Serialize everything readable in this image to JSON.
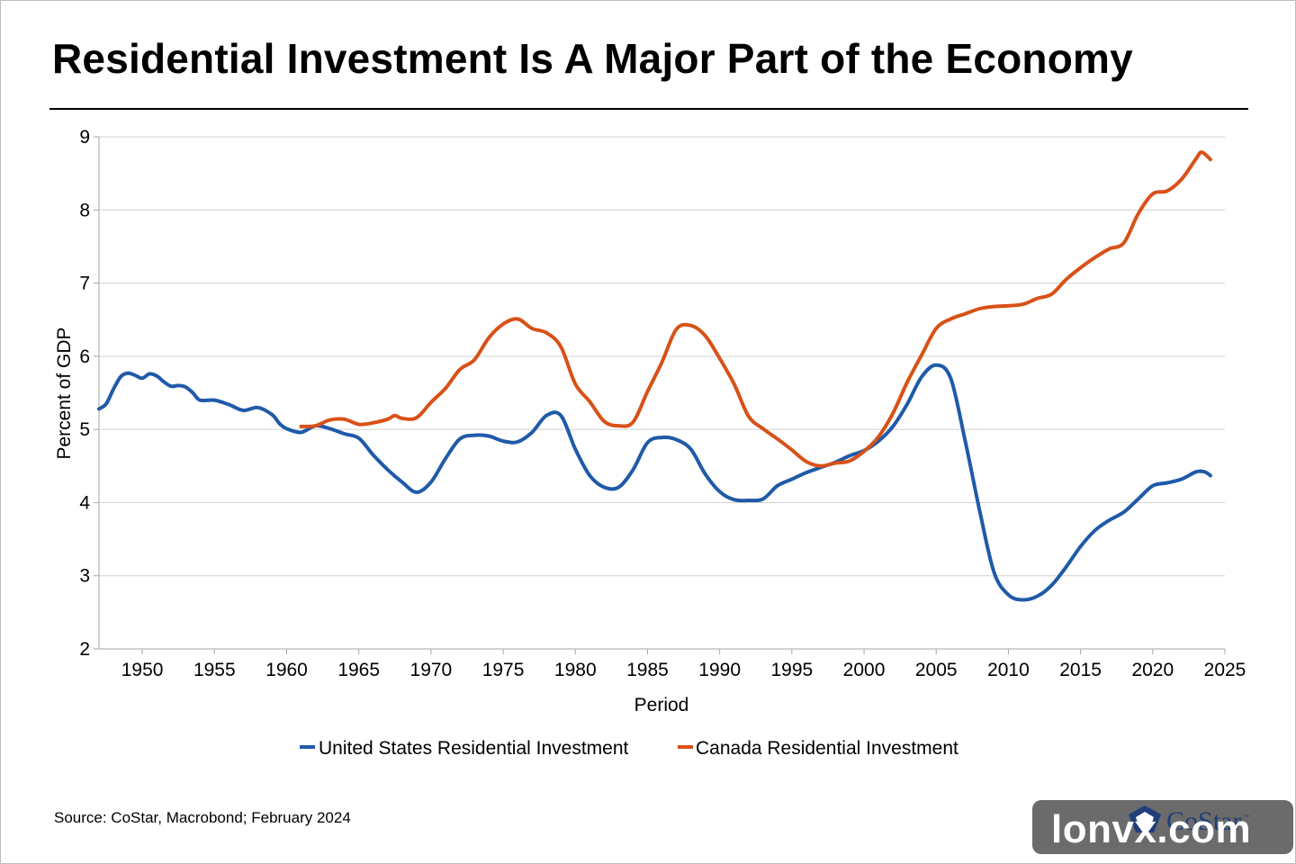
{
  "title": "Residential Investment Is A Major Part of the Economy",
  "source": "Source: CoStar, Macrobond; February 2024",
  "logo": {
    "text": "CoStar",
    "tm": "™"
  },
  "watermark": "lonvx.com",
  "colors": {
    "us": "#1f5aa8",
    "canada": "#d85117",
    "grid": "#d0d0d0",
    "axis": "#a6a6a6"
  },
  "chart_data": {
    "type": "line",
    "title": "Residential Investment Is A Major Part of the Economy",
    "xlabel": "Period",
    "ylabel": "Percent of GDP",
    "xlim": [
      1947,
      2025
    ],
    "ylim": [
      2,
      9
    ],
    "xticks": [
      1950,
      1955,
      1960,
      1965,
      1970,
      1975,
      1980,
      1985,
      1990,
      1995,
      2000,
      2005,
      2010,
      2015,
      2020,
      2025
    ],
    "yticks": [
      2,
      3,
      4,
      5,
      6,
      7,
      8,
      9
    ],
    "grid": true,
    "legend": "bottom-center",
    "series": [
      {
        "name": "United States Residential Investment",
        "color": "#1f5aa8",
        "points": [
          [
            1947.0,
            5.28
          ],
          [
            1947.5,
            5.35
          ],
          [
            1948.0,
            5.55
          ],
          [
            1948.5,
            5.72
          ],
          [
            1949.0,
            5.77
          ],
          [
            1949.5,
            5.74
          ],
          [
            1950.0,
            5.7
          ],
          [
            1950.5,
            5.76
          ],
          [
            1951.0,
            5.73
          ],
          [
            1951.5,
            5.65
          ],
          [
            1952.0,
            5.59
          ],
          [
            1952.5,
            5.6
          ],
          [
            1953.0,
            5.58
          ],
          [
            1953.5,
            5.5
          ],
          [
            1954.0,
            5.4
          ],
          [
            1955.0,
            5.4
          ],
          [
            1956.0,
            5.34
          ],
          [
            1957.0,
            5.26
          ],
          [
            1958.0,
            5.3
          ],
          [
            1959.0,
            5.2
          ],
          [
            1959.5,
            5.08
          ],
          [
            1960.0,
            5.01
          ],
          [
            1961.0,
            4.96
          ],
          [
            1962.0,
            5.05
          ],
          [
            1963.0,
            5.01
          ],
          [
            1964.0,
            4.94
          ],
          [
            1965.0,
            4.88
          ],
          [
            1966.0,
            4.65
          ],
          [
            1967.0,
            4.45
          ],
          [
            1968.0,
            4.28
          ],
          [
            1969.0,
            4.14
          ],
          [
            1970.0,
            4.28
          ],
          [
            1971.0,
            4.6
          ],
          [
            1972.0,
            4.87
          ],
          [
            1973.0,
            4.92
          ],
          [
            1974.0,
            4.91
          ],
          [
            1975.0,
            4.84
          ],
          [
            1976.0,
            4.83
          ],
          [
            1977.0,
            4.96
          ],
          [
            1978.0,
            5.19
          ],
          [
            1979.0,
            5.19
          ],
          [
            1980.0,
            4.73
          ],
          [
            1981.0,
            4.37
          ],
          [
            1982.0,
            4.21
          ],
          [
            1983.0,
            4.21
          ],
          [
            1984.0,
            4.45
          ],
          [
            1985.0,
            4.82
          ],
          [
            1986.0,
            4.89
          ],
          [
            1987.0,
            4.86
          ],
          [
            1988.0,
            4.73
          ],
          [
            1989.0,
            4.39
          ],
          [
            1990.0,
            4.15
          ],
          [
            1991.0,
            4.04
          ],
          [
            1992.0,
            4.03
          ],
          [
            1993.0,
            4.05
          ],
          [
            1994.0,
            4.23
          ],
          [
            1995.0,
            4.32
          ],
          [
            1996.0,
            4.41
          ],
          [
            1997.0,
            4.48
          ],
          [
            1998.0,
            4.55
          ],
          [
            1999.0,
            4.64
          ],
          [
            2000.0,
            4.71
          ],
          [
            2001.0,
            4.84
          ],
          [
            2002.0,
            5.04
          ],
          [
            2003.0,
            5.35
          ],
          [
            2004.0,
            5.72
          ],
          [
            2005.0,
            5.88
          ],
          [
            2006.0,
            5.7
          ],
          [
            2007.0,
            4.85
          ],
          [
            2008.0,
            3.9
          ],
          [
            2009.0,
            3.05
          ],
          [
            2010.0,
            2.74
          ],
          [
            2011.0,
            2.67
          ],
          [
            2012.0,
            2.72
          ],
          [
            2013.0,
            2.87
          ],
          [
            2014.0,
            3.12
          ],
          [
            2015.0,
            3.4
          ],
          [
            2016.0,
            3.62
          ],
          [
            2017.0,
            3.76
          ],
          [
            2018.0,
            3.87
          ],
          [
            2019.0,
            4.05
          ],
          [
            2020.0,
            4.23
          ],
          [
            2021.0,
            4.27
          ],
          [
            2022.0,
            4.32
          ],
          [
            2023.0,
            4.42
          ],
          [
            2023.6,
            4.42
          ],
          [
            2024.0,
            4.37
          ]
        ]
      },
      {
        "name": "Canada Residential Investment",
        "color": "#d85117",
        "points": [
          [
            1961.0,
            5.04
          ],
          [
            1962.0,
            5.05
          ],
          [
            1963.0,
            5.13
          ],
          [
            1964.0,
            5.14
          ],
          [
            1965.0,
            5.07
          ],
          [
            1966.0,
            5.09
          ],
          [
            1967.0,
            5.14
          ],
          [
            1967.5,
            5.19
          ],
          [
            1968.0,
            5.15
          ],
          [
            1969.0,
            5.16
          ],
          [
            1970.0,
            5.37
          ],
          [
            1971.0,
            5.56
          ],
          [
            1972.0,
            5.82
          ],
          [
            1973.0,
            5.95
          ],
          [
            1974.0,
            6.25
          ],
          [
            1975.0,
            6.44
          ],
          [
            1976.0,
            6.51
          ],
          [
            1977.0,
            6.38
          ],
          [
            1978.0,
            6.32
          ],
          [
            1979.0,
            6.13
          ],
          [
            1980.0,
            5.62
          ],
          [
            1981.0,
            5.38
          ],
          [
            1982.0,
            5.11
          ],
          [
            1983.0,
            5.05
          ],
          [
            1984.0,
            5.1
          ],
          [
            1985.0,
            5.52
          ],
          [
            1986.0,
            5.92
          ],
          [
            1987.0,
            6.37
          ],
          [
            1988.0,
            6.42
          ],
          [
            1989.0,
            6.28
          ],
          [
            1990.0,
            5.97
          ],
          [
            1991.0,
            5.62
          ],
          [
            1992.0,
            5.18
          ],
          [
            1993.0,
            5.01
          ],
          [
            1994.0,
            4.87
          ],
          [
            1995.0,
            4.72
          ],
          [
            1996.0,
            4.56
          ],
          [
            1997.0,
            4.5
          ],
          [
            1998.0,
            4.54
          ],
          [
            1999.0,
            4.57
          ],
          [
            2000.0,
            4.7
          ],
          [
            2001.0,
            4.9
          ],
          [
            2002.0,
            5.22
          ],
          [
            2003.0,
            5.65
          ],
          [
            2004.0,
            6.02
          ],
          [
            2005.0,
            6.38
          ],
          [
            2006.0,
            6.51
          ],
          [
            2007.0,
            6.58
          ],
          [
            2008.0,
            6.65
          ],
          [
            2009.0,
            6.68
          ],
          [
            2010.0,
            6.69
          ],
          [
            2011.0,
            6.71
          ],
          [
            2012.0,
            6.79
          ],
          [
            2013.0,
            6.85
          ],
          [
            2014.0,
            7.05
          ],
          [
            2015.0,
            7.21
          ],
          [
            2016.0,
            7.35
          ],
          [
            2017.0,
            7.47
          ],
          [
            2018.0,
            7.55
          ],
          [
            2019.0,
            7.95
          ],
          [
            2020.0,
            8.22
          ],
          [
            2021.0,
            8.26
          ],
          [
            2022.0,
            8.42
          ],
          [
            2023.0,
            8.7
          ],
          [
            2023.4,
            8.79
          ],
          [
            2024.0,
            8.69
          ]
        ]
      }
    ]
  }
}
